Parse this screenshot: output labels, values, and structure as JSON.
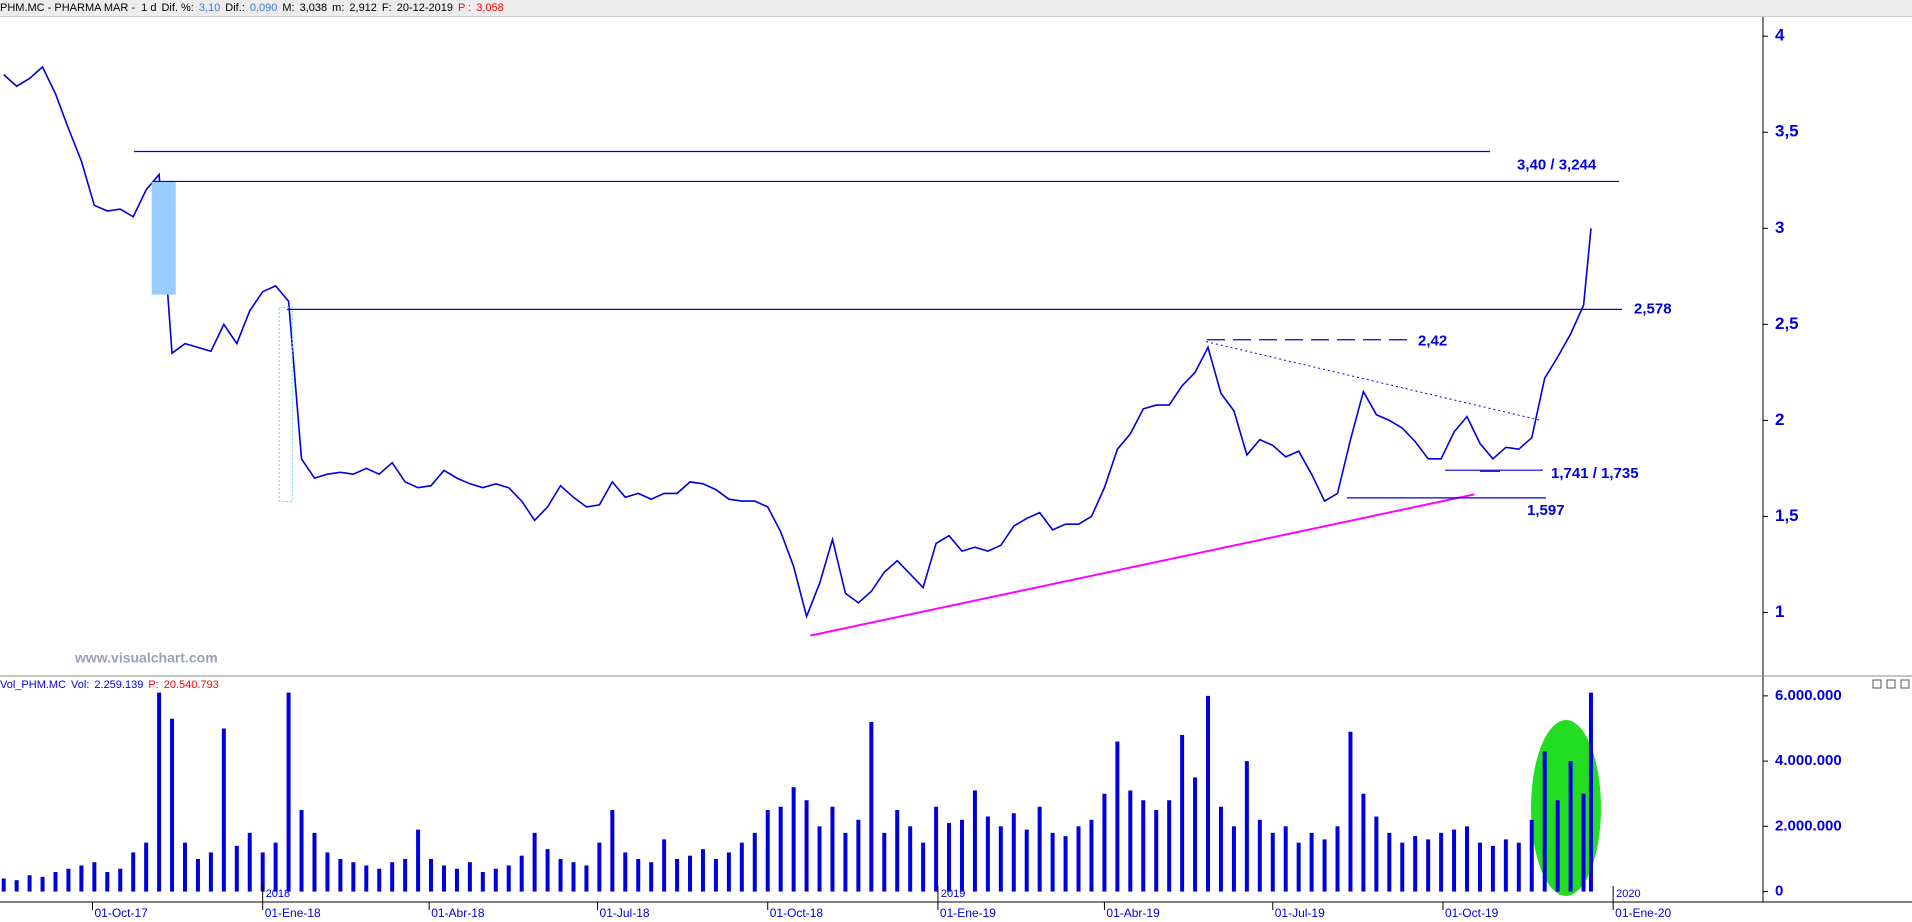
{
  "chart_data": [
    {
      "type": "line",
      "title": "PHM.MC - PHARMA MAR -  1 d",
      "stats": [
        {
          "label": "Dif. %:",
          "value": "3,10",
          "color": "#3a7bd5"
        },
        {
          "label": "Dif.:",
          "value": "0,090",
          "color": "#3a7bd5"
        },
        {
          "label": "M:",
          "value": "3,038",
          "color": "#000000"
        },
        {
          "label": "m:",
          "value": "2,912",
          "color": "#000000"
        },
        {
          "label": "F:",
          "value": "20-12-2019",
          "color": "#000000"
        },
        {
          "label": "P :",
          "value": "3,058",
          "color": "#ff0000"
        }
      ],
      "x": [
        "2017-08-14",
        "2017-08-21",
        "2017-08-28",
        "2017-09-04",
        "2017-09-11",
        "2017-09-18",
        "2017-09-25",
        "2017-10-02",
        "2017-10-09",
        "2017-10-16",
        "2017-10-23",
        "2017-10-30",
        "2017-11-06",
        "2017-11-13",
        "2017-11-20",
        "2017-11-27",
        "2017-12-04",
        "2017-12-11",
        "2017-12-18",
        "2017-12-25",
        "2018-01-01",
        "2018-01-08",
        "2018-01-15",
        "2018-01-22",
        "2018-01-29",
        "2018-02-05",
        "2018-02-12",
        "2018-02-19",
        "2018-02-26",
        "2018-03-05",
        "2018-03-12",
        "2018-03-19",
        "2018-03-26",
        "2018-04-02",
        "2018-04-09",
        "2018-04-16",
        "2018-04-23",
        "2018-04-30",
        "2018-05-07",
        "2018-05-14",
        "2018-05-21",
        "2018-05-28",
        "2018-06-04",
        "2018-06-11",
        "2018-06-18",
        "2018-06-25",
        "2018-07-02",
        "2018-07-09",
        "2018-07-16",
        "2018-07-23",
        "2018-07-30",
        "2018-08-06",
        "2018-08-13",
        "2018-08-20",
        "2018-08-27",
        "2018-09-03",
        "2018-09-10",
        "2018-09-17",
        "2018-09-24",
        "2018-10-01",
        "2018-10-08",
        "2018-10-15",
        "2018-10-22",
        "2018-10-29",
        "2018-11-05",
        "2018-11-12",
        "2018-11-19",
        "2018-11-26",
        "2018-12-03",
        "2018-12-10",
        "2018-12-17",
        "2018-12-24",
        "2018-12-31",
        "2019-01-07",
        "2019-01-14",
        "2019-01-21",
        "2019-01-28",
        "2019-02-04",
        "2019-02-11",
        "2019-02-18",
        "2019-02-25",
        "2019-03-04",
        "2019-03-11",
        "2019-03-18",
        "2019-03-25",
        "2019-04-01",
        "2019-04-08",
        "2019-04-15",
        "2019-04-22",
        "2019-04-29",
        "2019-05-06",
        "2019-05-13",
        "2019-05-20",
        "2019-05-27",
        "2019-06-03",
        "2019-06-10",
        "2019-06-17",
        "2019-06-24",
        "2019-07-01",
        "2019-07-08",
        "2019-07-15",
        "2019-07-22",
        "2019-07-29",
        "2019-08-05",
        "2019-08-12",
        "2019-08-19",
        "2019-08-26",
        "2019-09-02",
        "2019-09-09",
        "2019-09-16",
        "2019-09-23",
        "2019-09-30",
        "2019-10-07",
        "2019-10-14",
        "2019-10-21",
        "2019-10-28",
        "2019-11-04",
        "2019-11-11",
        "2019-11-18",
        "2019-11-25",
        "2019-12-02",
        "2019-12-09",
        "2019-12-16",
        "2019-12-20"
      ],
      "values": [
        3.8,
        3.74,
        3.78,
        3.84,
        3.7,
        3.52,
        3.35,
        3.12,
        3.09,
        3.1,
        3.06,
        3.2,
        3.28,
        2.35,
        2.4,
        2.38,
        2.36,
        2.5,
        2.4,
        2.57,
        2.67,
        2.7,
        2.62,
        1.8,
        1.7,
        1.72,
        1.73,
        1.72,
        1.75,
        1.72,
        1.78,
        1.68,
        1.65,
        1.66,
        1.74,
        1.7,
        1.67,
        1.65,
        1.67,
        1.65,
        1.58,
        1.48,
        1.55,
        1.66,
        1.6,
        1.55,
        1.56,
        1.68,
        1.6,
        1.62,
        1.59,
        1.62,
        1.62,
        1.68,
        1.67,
        1.64,
        1.59,
        1.58,
        1.58,
        1.55,
        1.42,
        1.24,
        0.98,
        1.15,
        1.38,
        1.1,
        1.05,
        1.11,
        1.21,
        1.27,
        1.2,
        1.13,
        1.36,
        1.4,
        1.32,
        1.34,
        1.32,
        1.35,
        1.45,
        1.49,
        1.52,
        1.43,
        1.46,
        1.46,
        1.5,
        1.65,
        1.85,
        1.93,
        2.06,
        2.08,
        2.08,
        2.18,
        2.25,
        2.38,
        2.14,
        2.05,
        1.82,
        1.9,
        1.87,
        1.81,
        1.84,
        1.72,
        1.58,
        1.62,
        1.9,
        2.15,
        2.03,
        2.0,
        1.96,
        1.89,
        1.8,
        1.8,
        1.94,
        2.02,
        1.88,
        1.8,
        1.86,
        1.85,
        1.91,
        2.22,
        2.33,
        2.45,
        2.6,
        3.0
      ],
      "color": "#0000dd",
      "xlim": [
        "2017-08-12",
        "2020-03-22"
      ],
      "ylim": [
        0.68,
        4.1
      ],
      "yticks": [
        1,
        {
          "value": 1.5,
          "label": "1,5"
        },
        2,
        {
          "value": 2.5,
          "label": "2,5"
        },
        3,
        {
          "value": 3.5,
          "label": "3,5"
        },
        4
      ],
      "levels": [
        {
          "label": "3,40 / 3,244",
          "values": [
            3.4,
            3.244
          ]
        },
        {
          "label": "2,578",
          "values": [
            2.578
          ]
        },
        {
          "label": "2,42",
          "values": [
            2.42
          ]
        },
        {
          "label": "1,741 / 1,735",
          "values": [
            1.741,
            1.735
          ]
        },
        {
          "label": "1,597",
          "values": [
            1.597
          ]
        }
      ],
      "trendlines": [
        {
          "x": [
            "2018-10-24",
            "2019-10-18"
          ],
          "values": [
            0.88,
            1.615
          ],
          "color": "#ff00ff"
        },
        {
          "x": [
            "2019-05-26",
            "2019-11-23"
          ],
          "values": [
            2.41,
            2.0
          ],
          "color": "#0000dd"
        }
      ],
      "gaps": [
        {
          "x": [
            "2017-11-02",
            "2017-11-15"
          ],
          "values": [
            3.244,
            2.655
          ],
          "color": "#99ccff"
        },
        {
          "x": [
            "2018-01-10",
            "2018-01-17"
          ],
          "values": [
            2.59,
            1.577
          ],
          "color": "#66dddd"
        }
      ]
    },
    {
      "type": "bar",
      "title": "Vol_PHM.MC",
      "stats": [
        {
          "label": "Vol:",
          "value": "2.259.139",
          "color": "#0000dd"
        },
        {
          "label": "P:",
          "value": "20.540.793",
          "color": "#ff0000"
        }
      ],
      "x": [
        "2017-08-14",
        "2017-08-21",
        "2017-08-28",
        "2017-09-04",
        "2017-09-11",
        "2017-09-18",
        "2017-09-25",
        "2017-10-02",
        "2017-10-09",
        "2017-10-16",
        "2017-10-23",
        "2017-10-30",
        "2017-11-06",
        "2017-11-13",
        "2017-11-20",
        "2017-11-27",
        "2017-12-04",
        "2017-12-11",
        "2017-12-18",
        "2017-12-25",
        "2018-01-01",
        "2018-01-08",
        "2018-01-15",
        "2018-01-22",
        "2018-01-29",
        "2018-02-05",
        "2018-02-12",
        "2018-02-19",
        "2018-02-26",
        "2018-03-05",
        "2018-03-12",
        "2018-03-19",
        "2018-03-26",
        "2018-04-02",
        "2018-04-09",
        "2018-04-16",
        "2018-04-23",
        "2018-04-30",
        "2018-05-07",
        "2018-05-14",
        "2018-05-21",
        "2018-05-28",
        "2018-06-04",
        "2018-06-11",
        "2018-06-18",
        "2018-06-25",
        "2018-07-02",
        "2018-07-09",
        "2018-07-16",
        "2018-07-23",
        "2018-07-30",
        "2018-08-06",
        "2018-08-13",
        "2018-08-20",
        "2018-08-27",
        "2018-09-03",
        "2018-09-10",
        "2018-09-17",
        "2018-09-24",
        "2018-10-01",
        "2018-10-08",
        "2018-10-15",
        "2018-10-22",
        "2018-10-29",
        "2018-11-05",
        "2018-11-12",
        "2018-11-19",
        "2018-11-26",
        "2018-12-03",
        "2018-12-10",
        "2018-12-17",
        "2018-12-24",
        "2018-12-31",
        "2019-01-07",
        "2019-01-14",
        "2019-01-21",
        "2019-01-28",
        "2019-02-04",
        "2019-02-11",
        "2019-02-18",
        "2019-02-25",
        "2019-03-04",
        "2019-03-11",
        "2019-03-18",
        "2019-03-25",
        "2019-04-01",
        "2019-04-08",
        "2019-04-15",
        "2019-04-22",
        "2019-04-29",
        "2019-05-06",
        "2019-05-13",
        "2019-05-20",
        "2019-05-27",
        "2019-06-03",
        "2019-06-10",
        "2019-06-17",
        "2019-06-24",
        "2019-07-01",
        "2019-07-08",
        "2019-07-15",
        "2019-07-22",
        "2019-07-29",
        "2019-08-05",
        "2019-08-12",
        "2019-08-19",
        "2019-08-26",
        "2019-09-02",
        "2019-09-09",
        "2019-09-16",
        "2019-09-23",
        "2019-09-30",
        "2019-10-07",
        "2019-10-14",
        "2019-10-21",
        "2019-10-28",
        "2019-11-04",
        "2019-11-11",
        "2019-11-18",
        "2019-11-25",
        "2019-12-02",
        "2019-12-09",
        "2019-12-16",
        "2019-12-20"
      ],
      "values": [
        400000,
        350000,
        500000,
        450000,
        600000,
        700000,
        800000,
        900000,
        600000,
        700000,
        1200000,
        1500000,
        6100000,
        5300000,
        1500000,
        1000000,
        1200000,
        5000000,
        1400000,
        1800000,
        1200000,
        1500000,
        6100000,
        2500000,
        1800000,
        1200000,
        1000000,
        900000,
        800000,
        700000,
        900000,
        1000000,
        1900000,
        1000000,
        800000,
        700000,
        900000,
        600000,
        700000,
        800000,
        1100000,
        1800000,
        1300000,
        1000000,
        900000,
        800000,
        1500000,
        2500000,
        1200000,
        1000000,
        900000,
        1600000,
        1000000,
        1100000,
        1300000,
        1000000,
        1200000,
        1500000,
        1800000,
        2500000,
        2600000,
        3200000,
        2800000,
        2000000,
        2600000,
        1800000,
        2200000,
        5200000,
        1800000,
        2500000,
        2000000,
        1500000,
        2600000,
        2100000,
        2200000,
        3100000,
        2300000,
        2000000,
        2400000,
        1900000,
        2600000,
        1800000,
        1700000,
        2000000,
        2200000,
        3000000,
        4600000,
        3100000,
        2800000,
        2500000,
        2800000,
        4800000,
        3500000,
        6000000,
        2600000,
        2000000,
        4000000,
        2200000,
        1800000,
        2000000,
        1500000,
        1800000,
        1600000,
        2000000,
        4900000,
        3000000,
        2300000,
        1800000,
        1500000,
        1700000,
        1600000,
        1800000,
        1900000,
        2000000,
        1500000,
        1400000,
        1600000,
        1500000,
        2200000,
        4300000,
        2800000,
        4000000,
        3000000,
        6100000
      ],
      "color": "#0000dd",
      "xlim": [
        "2017-08-12",
        "2020-03-22"
      ],
      "ylim": [
        -320000,
        6180000
      ],
      "yticks": [
        0,
        {
          "value": 2000000,
          "label": "2.000.000"
        },
        {
          "value": 4000000,
          "label": "4.000.000"
        },
        {
          "value": 6000000,
          "label": "6.000.000"
        }
      ],
      "xticks": [
        {
          "value": "2017-10-01",
          "label": "01-Oct-17"
        },
        {
          "value": "2018-01-01",
          "label": "01-Ene-18"
        },
        {
          "value": "2018-04-01",
          "label": "01-Abr-18"
        },
        {
          "value": "2018-07-01",
          "label": "01-Jul-18"
        },
        {
          "value": "2018-10-01",
          "label": "01-Oct-18"
        },
        {
          "value": "2019-01-01",
          "label": "01-Ene-19"
        },
        {
          "value": "2019-04-01",
          "label": "01-Abr-19"
        },
        {
          "value": "2019-07-01",
          "label": "01-Jul-19"
        },
        {
          "value": "2019-10-01",
          "label": "01-Oct-19"
        },
        {
          "value": "2020-01-01",
          "label": "01-Ene-20"
        }
      ],
      "year_ticks": [
        {
          "value": "2018-01-01",
          "label": "2018"
        },
        {
          "value": "2019-01-01",
          "label": "2019"
        },
        {
          "value": "2020-01-01",
          "label": "2020"
        }
      ]
    }
  ],
  "watermark": "www.visualchart.com"
}
